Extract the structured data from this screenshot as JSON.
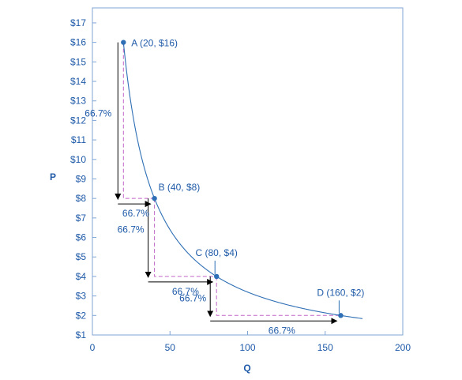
{
  "chart_data": {
    "type": "line",
    "xlabel": "Q",
    "ylabel": "P",
    "xlim": [
      0,
      200
    ],
    "ylim": [
      1,
      17.4
    ],
    "x_ticks": [
      "0",
      "50",
      "100",
      "150",
      "200"
    ],
    "x_tick_values": [
      0,
      50,
      100,
      150,
      200
    ],
    "y_ticks": [
      "$1",
      "$2",
      "$3",
      "$4",
      "$5",
      "$6",
      "$7",
      "$8",
      "$9",
      "$10",
      "$11",
      "$12",
      "$13",
      "$14",
      "$15",
      "$16",
      "$17"
    ],
    "y_tick_values": [
      1,
      2,
      3,
      4,
      5,
      6,
      7,
      8,
      9,
      10,
      11,
      12,
      13,
      14,
      15,
      16,
      17
    ],
    "curve": {
      "k": 320,
      "x_start": 20,
      "x_end": 174
    },
    "points": [
      {
        "id": "A",
        "x": 20,
        "y": 16,
        "label": "A (20, $16)"
      },
      {
        "id": "B",
        "x": 40,
        "y": 8,
        "label": "B (40, $8)"
      },
      {
        "id": "C",
        "x": 80,
        "y": 4,
        "label": "C (80, $4)"
      },
      {
        "id": "D",
        "x": 160,
        "y": 2,
        "label": "D (160, $2)"
      }
    ],
    "annotations": [
      {
        "name": "pct-price-a-b",
        "text": "66.7%"
      },
      {
        "name": "pct-qty-a-b",
        "text": "66.7%"
      },
      {
        "name": "pct-price-b-c",
        "text": "66.7%"
      },
      {
        "name": "pct-qty-b-c",
        "text": "66.7%"
      },
      {
        "name": "pct-price-c-d",
        "text": "66.7%"
      },
      {
        "name": "pct-qty-c-d",
        "text": "66.7%"
      }
    ],
    "colors": {
      "curve": "#2e6fb5",
      "text": "#1f5aa8",
      "dashed": "#c266c8",
      "arrow": "#000000",
      "frame": "#7fa6d6"
    }
  }
}
